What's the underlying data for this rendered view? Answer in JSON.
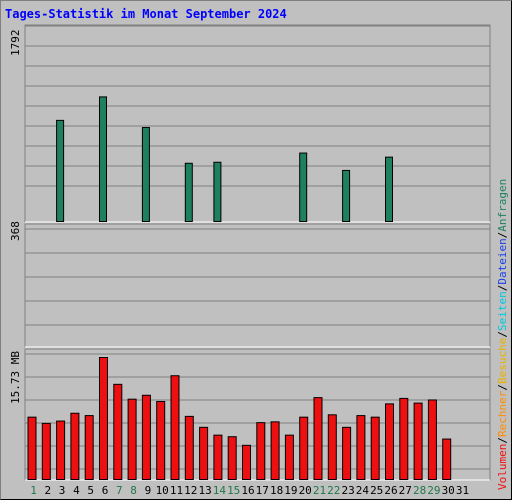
{
  "chart_data": [
    {
      "type": "bar",
      "title": "Tages-Statistik im Monat September 2024",
      "panel": "top",
      "ymax_label": "1792",
      "ylim": [
        0,
        1792
      ],
      "categories": [
        "1",
        "2",
        "3",
        "4",
        "5",
        "6",
        "7",
        "8",
        "9",
        "10",
        "11",
        "12",
        "13",
        "14",
        "15",
        "16",
        "17",
        "18",
        "19",
        "20",
        "21",
        "22",
        "23",
        "24",
        "25",
        "26",
        "27",
        "28",
        "29",
        "30",
        "31"
      ],
      "series": [
        {
          "name": "Anfragen",
          "values": [
            0,
            0,
            1000,
            0,
            0,
            1230,
            0,
            0,
            930,
            0,
            0,
            580,
            0,
            590,
            0,
            0,
            0,
            0,
            0,
            680,
            0,
            0,
            510,
            0,
            0,
            640,
            0,
            0,
            0,
            0,
            0
          ]
        },
        {
          "name": "Dateien",
          "values": [
            0,
            0,
            0,
            0,
            0,
            0,
            0,
            0,
            0,
            0,
            0,
            0,
            0,
            0,
            0,
            0,
            0,
            0,
            0,
            0,
            0,
            0,
            0,
            0,
            0,
            0,
            0,
            0,
            0,
            0,
            0
          ]
        },
        {
          "name": "Seiten",
          "values": [
            0,
            0,
            0,
            0,
            0,
            0,
            0,
            0,
            0,
            0,
            0,
            0,
            0,
            0,
            0,
            0,
            0,
            0,
            0,
            0,
            0,
            0,
            0,
            0,
            0,
            0,
            0,
            0,
            0,
            0,
            0
          ]
        }
      ]
    },
    {
      "type": "bar",
      "panel": "middle",
      "ymax_label": "368",
      "ylim": [
        0,
        368
      ],
      "series": [
        {
          "name": "Besuche",
          "values": [
            0,
            0,
            0,
            0,
            0,
            0,
            0,
            0,
            0,
            0,
            0,
            0,
            0,
            0,
            0,
            0,
            0,
            0,
            0,
            0,
            0,
            0,
            0,
            0,
            0,
            0,
            0,
            0,
            0,
            0,
            0
          ]
        },
        {
          "name": "Rechner",
          "values": [
            0,
            0,
            0,
            0,
            0,
            0,
            0,
            0,
            0,
            0,
            0,
            0,
            0,
            0,
            0,
            0,
            0,
            0,
            0,
            0,
            0,
            0,
            0,
            0,
            0,
            0,
            0,
            0,
            0,
            0,
            0
          ]
        }
      ]
    },
    {
      "type": "bar",
      "panel": "bottom",
      "ymax_label": "15.73 MB",
      "ylim": [
        0,
        15.73
      ],
      "series": [
        {
          "name": "Volumen",
          "values": [
            8.1,
            7.3,
            7.6,
            8.6,
            8.3,
            15.73,
            12.3,
            10.4,
            10.9,
            10.1,
            13.4,
            8.2,
            6.8,
            5.8,
            5.6,
            4.5,
            7.4,
            7.5,
            5.8,
            8.1,
            10.6,
            8.4,
            6.8,
            8.3,
            8.1,
            9.8,
            10.5,
            9.9,
            10.3,
            5.3,
            0
          ]
        }
      ]
    }
  ],
  "legend": {
    "sep": "/",
    "anfragen": "Anfragen",
    "dateien": "Dateien",
    "seiten": "Seiten",
    "besuche": "Besuche",
    "rechner": "Rechner",
    "volumen": "Volumen"
  },
  "colors": {
    "anfragen": "#1e8060",
    "dateien": "#1a40e8",
    "seiten": "#00e4ff",
    "besuche": "#ffff30",
    "rechner": "#ff8c00",
    "volumen": "#ee1010",
    "title": "#0000ff",
    "weekend_label": "#207848"
  },
  "weekend_days": [
    "1",
    "7",
    "8",
    "14",
    "15",
    "21",
    "22",
    "28",
    "29"
  ]
}
